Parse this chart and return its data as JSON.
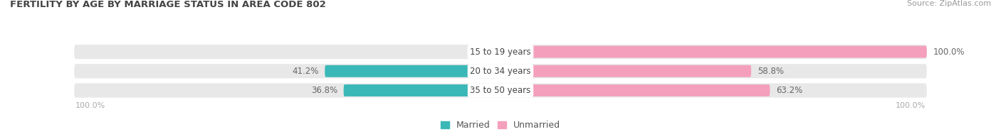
{
  "title": "FERTILITY BY AGE BY MARRIAGE STATUS IN AREA CODE 802",
  "source": "Source: ZipAtlas.com",
  "categories": [
    "15 to 19 years",
    "20 to 34 years",
    "35 to 50 years"
  ],
  "married": [
    0.0,
    41.2,
    36.8
  ],
  "unmarried": [
    100.0,
    58.8,
    63.2
  ],
  "married_color": "#3ab8b8",
  "unmarried_color": "#f4a0bc",
  "row_bg_color": "#e8e8e8",
  "label_color": "#666666",
  "title_color": "#444444",
  "source_color": "#999999",
  "axis_label_color": "#aaaaaa",
  "bar_height": 0.62,
  "figsize": [
    14.06,
    1.96
  ],
  "dpi": 100,
  "bg_color": "#ffffff"
}
